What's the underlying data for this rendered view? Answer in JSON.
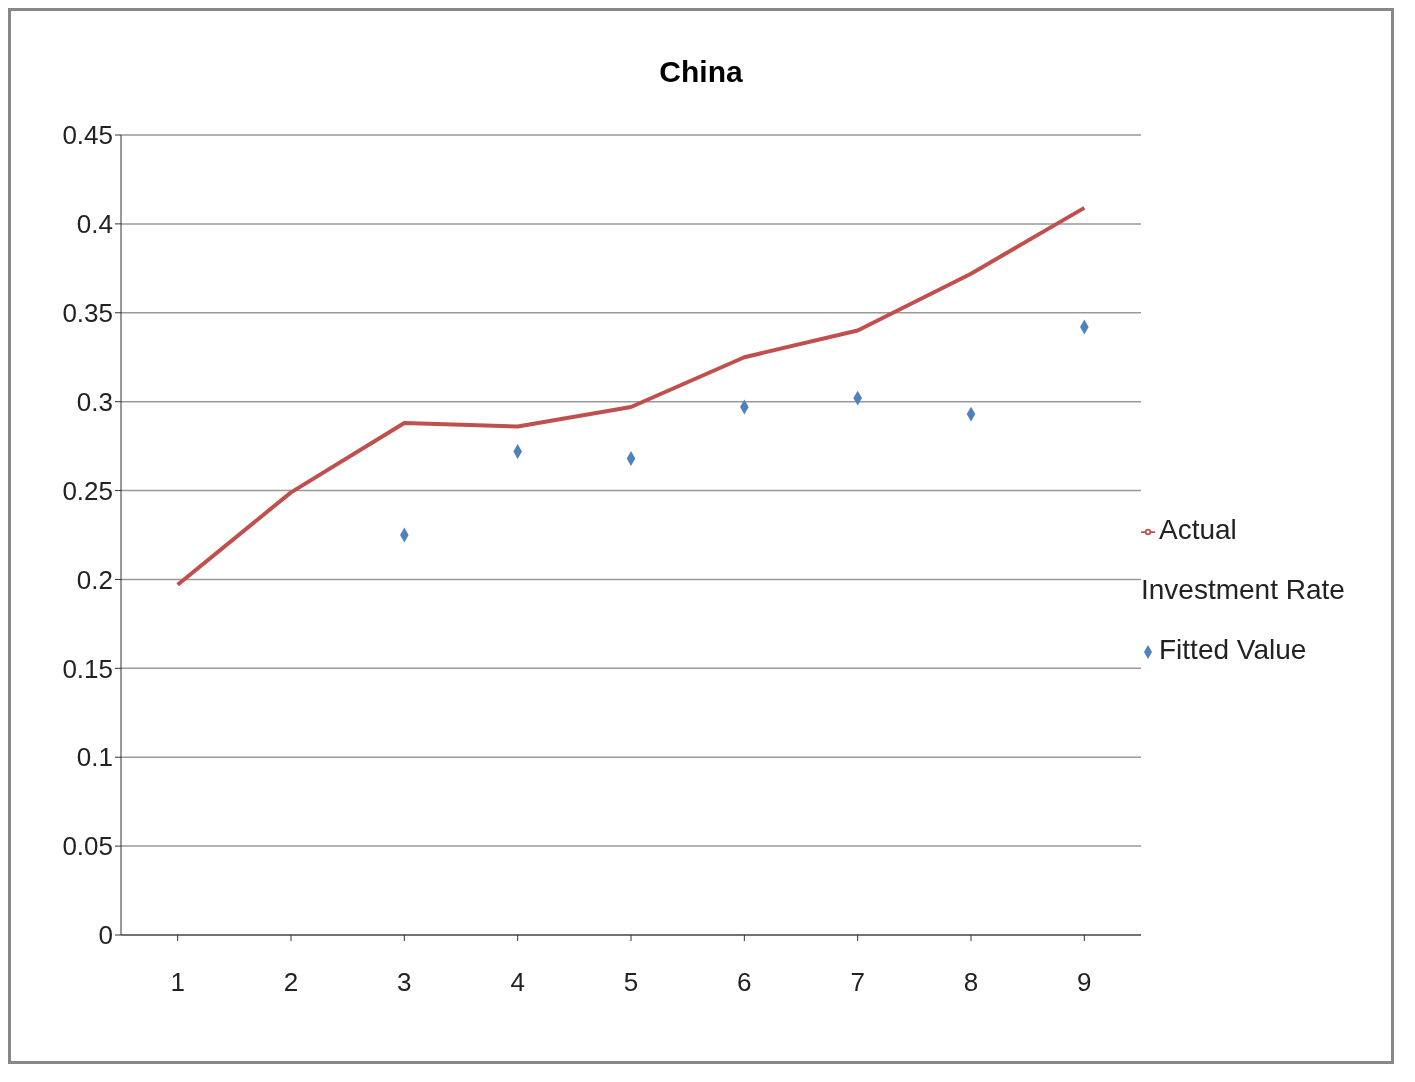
{
  "chart_data": {
    "type": "line",
    "title": "China",
    "categories": [
      "1",
      "2",
      "3",
      "4",
      "5",
      "6",
      "7",
      "8",
      "9"
    ],
    "series": [
      {
        "name": "Fitted Value",
        "type": "scatter",
        "marker": "diamond",
        "color": "#4f81bd",
        "values": [
          null,
          null,
          0.225,
          0.272,
          0.268,
          0.297,
          0.302,
          0.293,
          0.342
        ]
      },
      {
        "name": "Actual Investment Rate",
        "marker": "none",
        "line_style": "solid",
        "color": "#c0504d",
        "values": [
          0.197,
          0.249,
          0.288,
          0.286,
          0.297,
          0.325,
          0.34,
          0.372,
          0.409
        ]
      }
    ],
    "ylim": [
      0,
      0.45
    ],
    "yticks": [
      0,
      0.05,
      0.1,
      0.15,
      0.2,
      0.25,
      0.3,
      0.35,
      0.4,
      0.45
    ],
    "grid": "y",
    "legend": "right"
  }
}
